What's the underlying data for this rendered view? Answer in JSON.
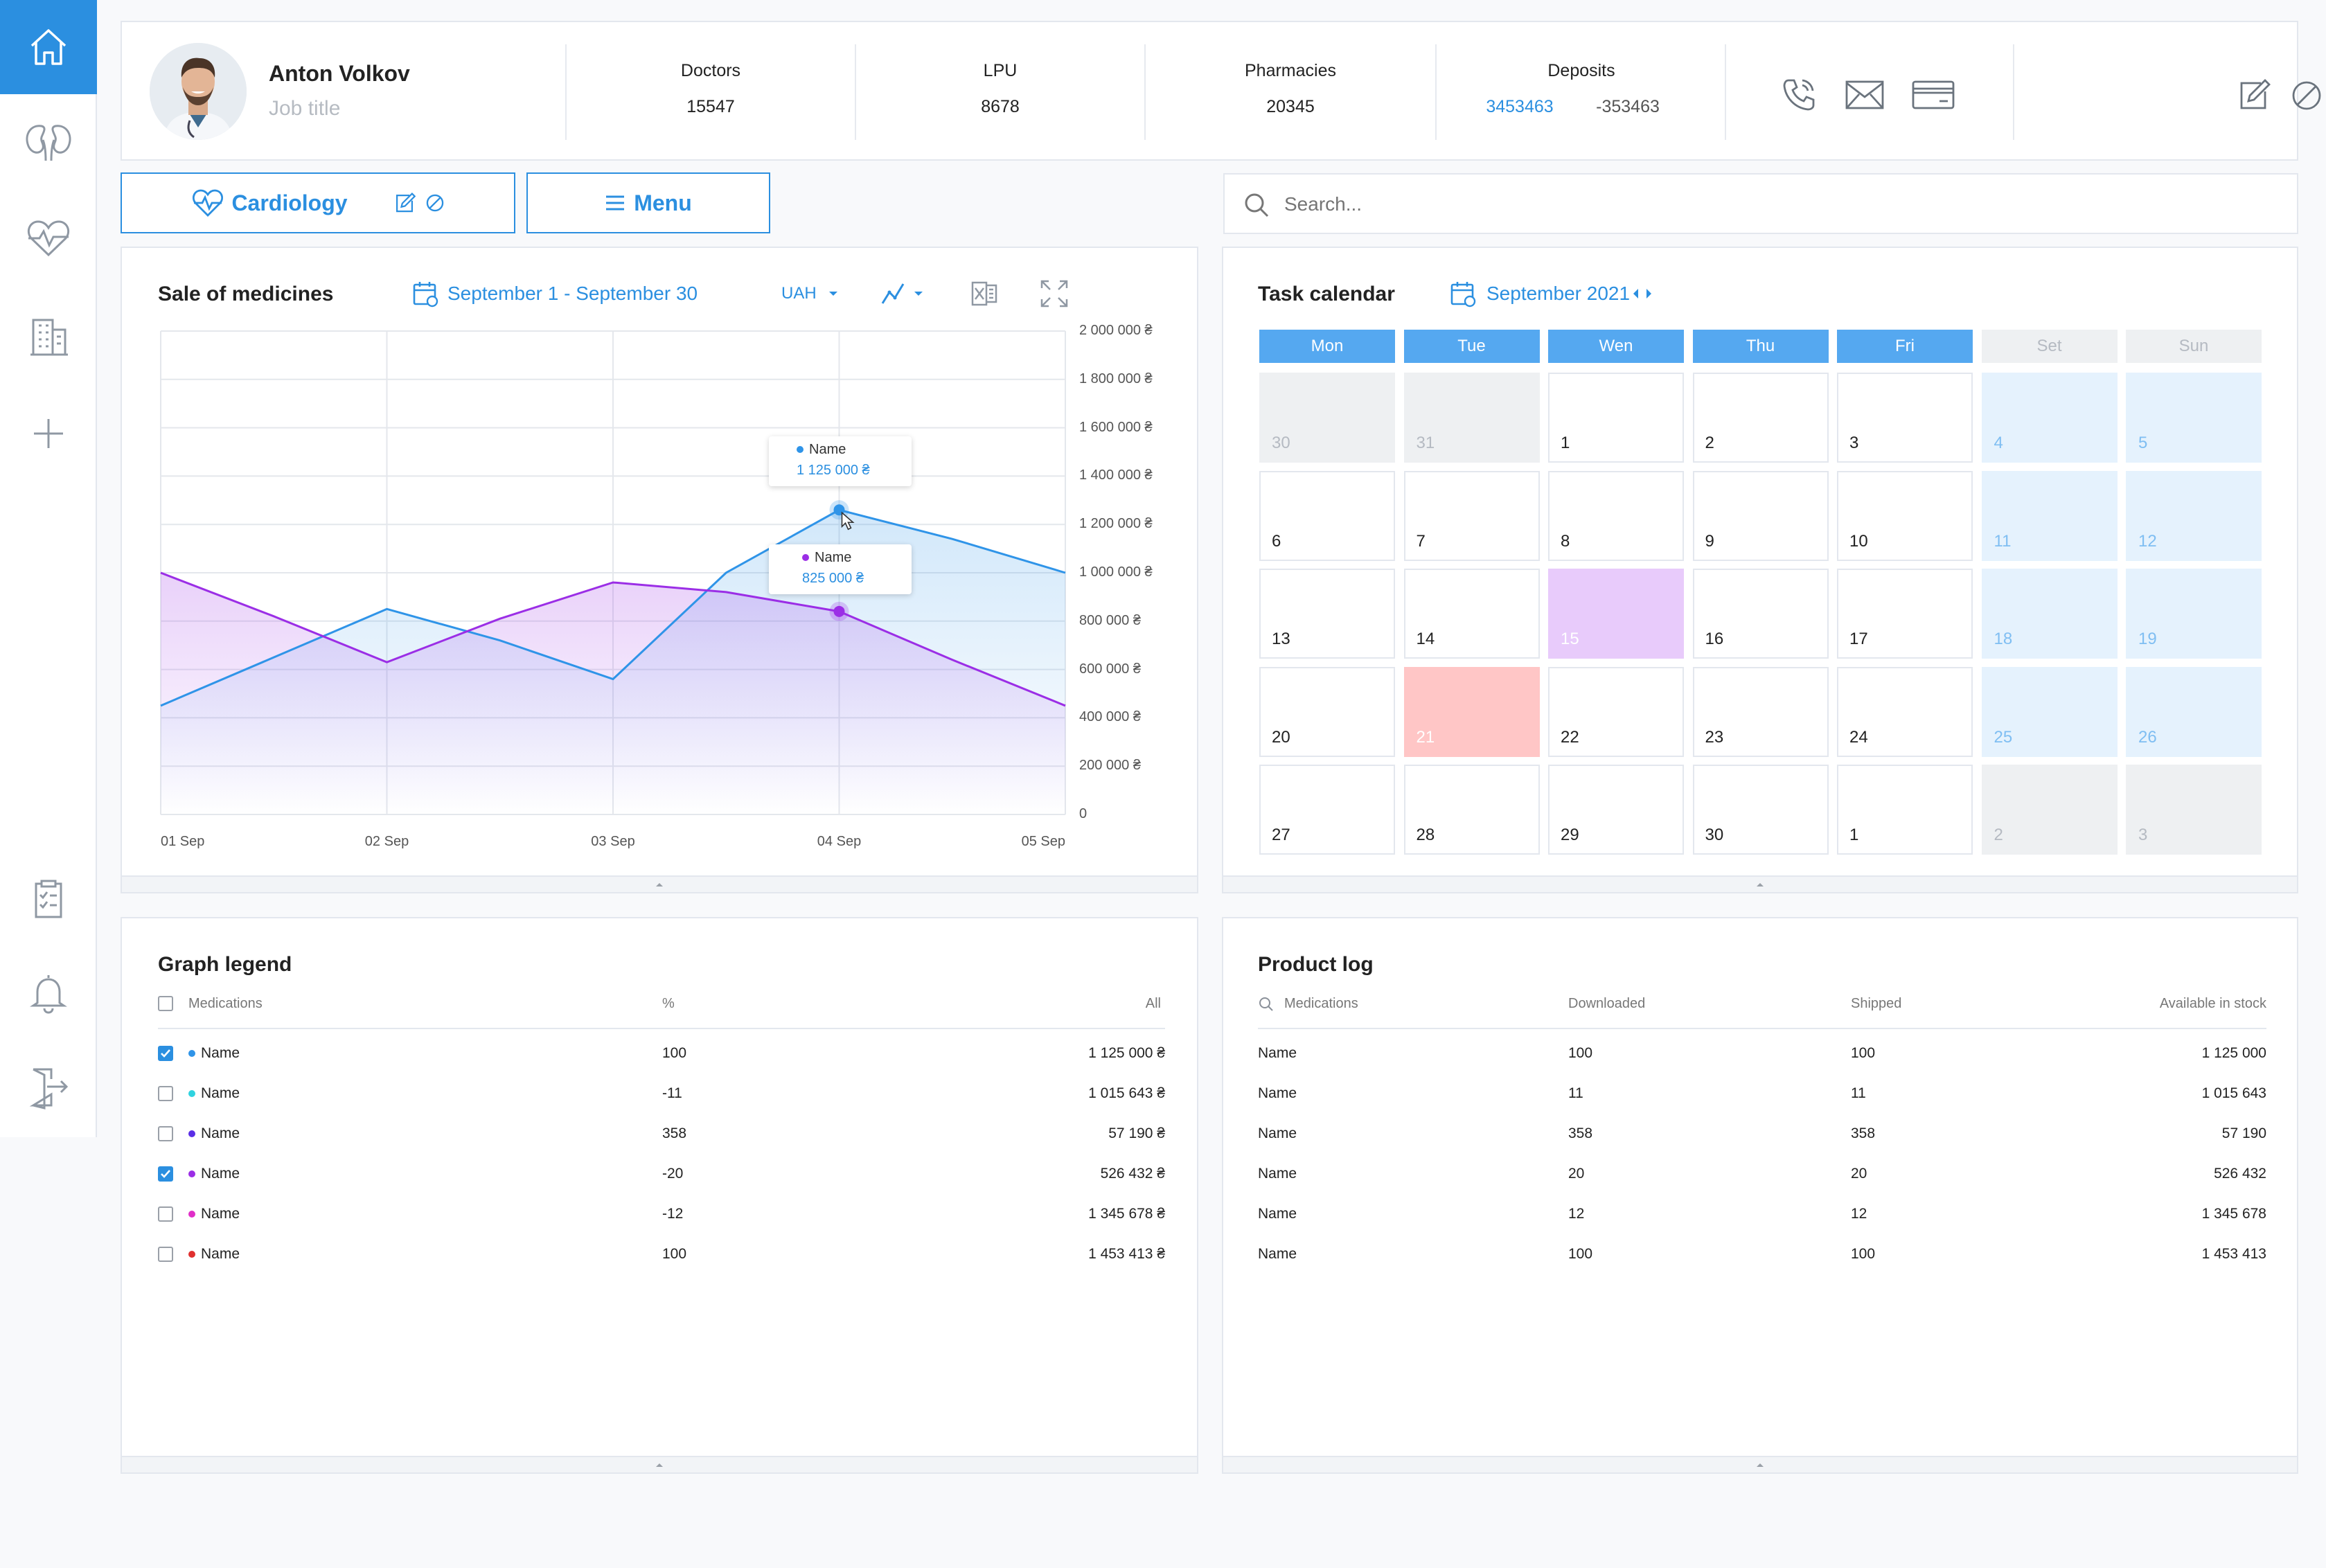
{
  "profile": {
    "name": "Anton Volkov",
    "job_title": "Job title"
  },
  "stats": {
    "doctors": {
      "label": "Doctors",
      "value": "15547"
    },
    "lpu": {
      "label": "LPU",
      "value": "8678"
    },
    "pharmacies": {
      "label": "Pharmacies",
      "value": "20345"
    },
    "deposits": {
      "label": "Deposits",
      "value_positive": "3453463",
      "value_negative": "-353463"
    }
  },
  "buttons": {
    "cardiology": "Cardiology",
    "menu": "Menu"
  },
  "search": {
    "placeholder": "Search..."
  },
  "colors": {
    "accent": "#2b8fe0",
    "series_blue": "#2f94e8",
    "series_purple": "#9b2ee6",
    "highlight_purple": "#e8cbfb",
    "highlight_pink": "#ffc6c6"
  },
  "icons": [
    "home-icon",
    "kidneys-icon",
    "heart-pulse-icon",
    "building-icon",
    "plus-icon",
    "clipboard-check-icon",
    "bell-icon",
    "logout-icon",
    "phone-icon",
    "mail-icon",
    "card-icon",
    "edit-icon",
    "block-icon",
    "search-icon",
    "calendar-icon",
    "line-chart-icon",
    "excel-icon",
    "fullscreen-icon"
  ],
  "sales": {
    "title": "Sale of medicines",
    "date_range": "September 1 - September 30",
    "currency": "UAH",
    "tooltip_blue": {
      "name": "Name",
      "value": "1 125 000 ₴"
    },
    "tooltip_purple": {
      "name": "Name",
      "value": "825 000 ₴"
    }
  },
  "chart_data": {
    "type": "area",
    "categories": [
      "01 Sep",
      "02 Sep",
      "03 Sep",
      "04 Sep",
      "05 Sep"
    ],
    "x": [
      0,
      0.5,
      1,
      1.5,
      2,
      2.5,
      3,
      3.5,
      4
    ],
    "series": [
      {
        "name": "Name",
        "color": "#2f94e8",
        "values": [
          450000,
          650000,
          850000,
          720000,
          560000,
          1000000,
          1260000,
          1140000,
          1000000
        ]
      },
      {
        "name": "Name",
        "color": "#9b2ee6",
        "values": [
          1000000,
          820000,
          630000,
          810000,
          960000,
          920000,
          840000,
          640000,
          450000
        ]
      }
    ],
    "ylim": [
      0,
      2000000
    ],
    "yticks": [
      "2 000 000 ₴",
      "1 800 000 ₴",
      "1 600 000 ₴",
      "1 400 000 ₴",
      "1 200 000 ₴",
      "1 000 000 ₴",
      "800 000 ₴",
      "600 000 ₴",
      "400 000 ₴",
      "200 000 ₴",
      "0"
    ],
    "grid": true
  },
  "calendar": {
    "title": "Task calendar",
    "month": "September 2021",
    "weekdays": [
      "Mon",
      "Tue",
      "Wen",
      "Thu",
      "Fri",
      "Set",
      "Sun"
    ],
    "weeks": [
      [
        {
          "d": "30",
          "t": "other"
        },
        {
          "d": "31",
          "t": "other"
        },
        {
          "d": "1",
          "t": "n"
        },
        {
          "d": "2",
          "t": "n"
        },
        {
          "d": "3",
          "t": "n"
        },
        {
          "d": "4",
          "t": "weekend"
        },
        {
          "d": "5",
          "t": "weekend"
        }
      ],
      [
        {
          "d": "6",
          "t": "n"
        },
        {
          "d": "7",
          "t": "n"
        },
        {
          "d": "8",
          "t": "n"
        },
        {
          "d": "9",
          "t": "n"
        },
        {
          "d": "10",
          "t": "n"
        },
        {
          "d": "11",
          "t": "weekend"
        },
        {
          "d": "12",
          "t": "weekend"
        }
      ],
      [
        {
          "d": "13",
          "t": "n"
        },
        {
          "d": "14",
          "t": "n"
        },
        {
          "d": "15",
          "t": "purple"
        },
        {
          "d": "16",
          "t": "n"
        },
        {
          "d": "17",
          "t": "n"
        },
        {
          "d": "18",
          "t": "weekend"
        },
        {
          "d": "19",
          "t": "weekend"
        }
      ],
      [
        {
          "d": "20",
          "t": "n"
        },
        {
          "d": "21",
          "t": "pink"
        },
        {
          "d": "22",
          "t": "n"
        },
        {
          "d": "23",
          "t": "n"
        },
        {
          "d": "24",
          "t": "n"
        },
        {
          "d": "25",
          "t": "weekend"
        },
        {
          "d": "26",
          "t": "weekend"
        }
      ],
      [
        {
          "d": "27",
          "t": "n"
        },
        {
          "d": "28",
          "t": "n"
        },
        {
          "d": "29",
          "t": "n"
        },
        {
          "d": "30",
          "t": "n"
        },
        {
          "d": "1",
          "t": "n"
        },
        {
          "d": "2",
          "t": "other"
        },
        {
          "d": "3",
          "t": "other"
        }
      ]
    ]
  },
  "legend": {
    "title": "Graph legend",
    "headers": {
      "name": "Medications",
      "pct": "%",
      "all": "All"
    },
    "rows": [
      {
        "name": "Name",
        "pct": "100",
        "all": "1 125 000 ₴",
        "checked": true,
        "color": "#2f94e8"
      },
      {
        "name": "Name",
        "pct": "-11",
        "all": "1 015 643 ₴",
        "checked": false,
        "color": "#2fd3e0"
      },
      {
        "name": "Name",
        "pct": "358",
        "all": "57 190 ₴",
        "checked": false,
        "color": "#5a2ee6"
      },
      {
        "name": "Name",
        "pct": "-20",
        "all": "526 432 ₴",
        "checked": true,
        "color": "#9b2ee6"
      },
      {
        "name": "Name",
        "pct": "-12",
        "all": "1 345 678 ₴",
        "checked": false,
        "color": "#e02fc8"
      },
      {
        "name": "Name",
        "pct": "100",
        "all": "1 453 413 ₴",
        "checked": false,
        "color": "#e0302f"
      }
    ]
  },
  "product_log": {
    "title": "Product log",
    "headers": {
      "name": "Medications",
      "downloaded": "Downloaded",
      "shipped": "Shipped",
      "stock": "Available in stock"
    },
    "rows": [
      {
        "name": "Name",
        "downloaded": "100",
        "shipped": "100",
        "stock": "1 125 000"
      },
      {
        "name": "Name",
        "downloaded": "11",
        "shipped": "11",
        "stock": "1 015 643"
      },
      {
        "name": "Name",
        "downloaded": "358",
        "shipped": "358",
        "stock": "57 190"
      },
      {
        "name": "Name",
        "downloaded": "20",
        "shipped": "20",
        "stock": "526 432"
      },
      {
        "name": "Name",
        "downloaded": "12",
        "shipped": "12",
        "stock": "1 345 678"
      },
      {
        "name": "Name",
        "downloaded": "100",
        "shipped": "100",
        "stock": "1 453 413"
      }
    ]
  }
}
